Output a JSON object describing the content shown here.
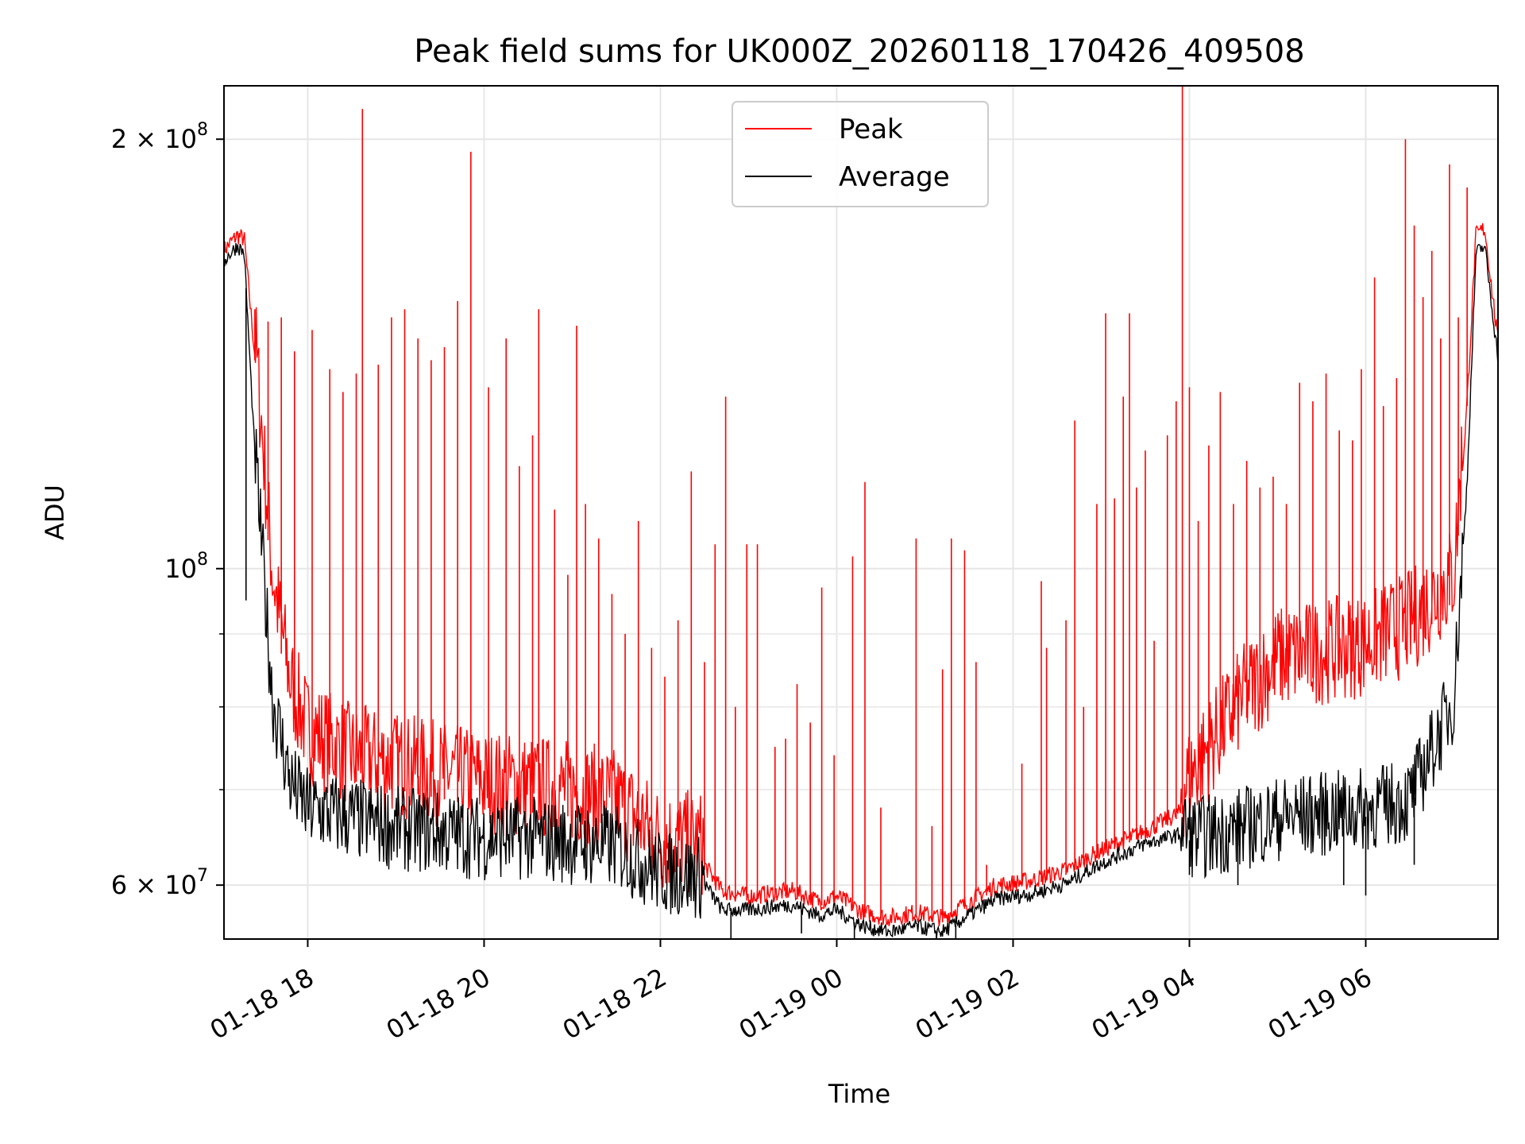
{
  "chart_data": {
    "type": "line",
    "title": "Peak field sums for UK000Z_20260118_170426_409508",
    "xlabel": "Time",
    "ylabel": "ADU",
    "yscale": "log",
    "ylim": [
      55000000,
      218000000
    ],
    "xlim_hours": [
      17.05,
      7.5
    ],
    "x_ticks": [
      {
        "label": "01-18 18",
        "hour": 18
      },
      {
        "label": "01-18 20",
        "hour": 20
      },
      {
        "label": "01-18 22",
        "hour": 22
      },
      {
        "label": "01-19 00",
        "hour": 24
      },
      {
        "label": "01-19 02",
        "hour": 26
      },
      {
        "label": "01-19 04",
        "hour": 28
      },
      {
        "label": "01-19 06",
        "hour": 30
      }
    ],
    "y_ticks_major": [
      {
        "value": 60000000,
        "mantissa": "6",
        "exponent": "7"
      },
      {
        "value": 100000000,
        "mantissa": "",
        "exponent": "8"
      },
      {
        "value": 200000000,
        "mantissa": "2",
        "exponent": "8"
      }
    ],
    "y_ticks_minor": [
      70000000,
      80000000,
      90000000
    ],
    "legend": {
      "location": "upper center",
      "entries": [
        {
          "name": "Peak",
          "color": "#ff0000"
        },
        {
          "name": "Average",
          "color": "#000000"
        }
      ]
    },
    "grid": true,
    "series": [
      {
        "name": "Peak",
        "color": "#ff0000",
        "baseline": {
          "hours": [
            17.05,
            17.2,
            17.28,
            17.4,
            17.6,
            17.8,
            18.0,
            18.5,
            19.0,
            19.5,
            20.0,
            20.5,
            21.0,
            21.5,
            22.0,
            22.5,
            22.7,
            23.0,
            23.5,
            23.8,
            24.0,
            24.3,
            24.6,
            24.9,
            25.2,
            25.5,
            25.8,
            26.2,
            26.6,
            27.0,
            27.5,
            27.9,
            28.1,
            28.6,
            29.0,
            29.5,
            30.0,
            30.5,
            31.0,
            31.15,
            31.25,
            31.35,
            31.5
          ],
          "values": [
            166000000,
            170000000,
            169000000,
            140000000,
            95000000,
            80000000,
            74000000,
            71000000,
            70000000,
            69000000,
            68000000,
            67500000,
            67000000,
            66000000,
            62000000,
            61500000,
            59000000,
            58500000,
            59000000,
            58000000,
            58500000,
            57000000,
            56500000,
            57000000,
            56500000,
            58000000,
            59500000,
            60000000,
            61000000,
            63000000,
            65000000,
            67000000,
            70000000,
            78000000,
            83000000,
            84000000,
            85000000,
            88000000,
            95000000,
            130000000,
            170000000,
            172000000,
            143000000
          ]
        },
        "spikes": [
          {
            "hour": 17.4,
            "value": 152000000
          },
          {
            "hour": 17.55,
            "value": 149000000
          },
          {
            "hour": 17.7,
            "value": 150000000
          },
          {
            "hour": 17.85,
            "value": 142000000
          },
          {
            "hour": 18.05,
            "value": 147000000
          },
          {
            "hour": 18.25,
            "value": 138000000
          },
          {
            "hour": 18.4,
            "value": 133000000
          },
          {
            "hour": 18.55,
            "value": 137000000
          },
          {
            "hour": 18.62,
            "value": 210000000
          },
          {
            "hour": 18.8,
            "value": 139000000
          },
          {
            "hour": 18.95,
            "value": 150000000
          },
          {
            "hour": 19.1,
            "value": 152000000
          },
          {
            "hour": 19.25,
            "value": 145000000
          },
          {
            "hour": 19.4,
            "value": 140000000
          },
          {
            "hour": 19.55,
            "value": 143000000
          },
          {
            "hour": 19.7,
            "value": 154000000
          },
          {
            "hour": 19.85,
            "value": 196000000
          },
          {
            "hour": 20.05,
            "value": 134000000
          },
          {
            "hour": 20.25,
            "value": 145000000
          },
          {
            "hour": 20.4,
            "value": 118000000
          },
          {
            "hour": 20.55,
            "value": 124000000
          },
          {
            "hour": 20.62,
            "value": 152000000
          },
          {
            "hour": 20.8,
            "value": 110000000
          },
          {
            "hour": 20.95,
            "value": 99000000
          },
          {
            "hour": 21.05,
            "value": 148000000
          },
          {
            "hour": 21.15,
            "value": 111000000
          },
          {
            "hour": 21.3,
            "value": 105000000
          },
          {
            "hour": 21.45,
            "value": 96000000
          },
          {
            "hour": 21.6,
            "value": 90000000
          },
          {
            "hour": 21.75,
            "value": 108000000
          },
          {
            "hour": 21.9,
            "value": 88000000
          },
          {
            "hour": 22.05,
            "value": 84000000
          },
          {
            "hour": 22.2,
            "value": 92000000
          },
          {
            "hour": 22.35,
            "value": 117000000
          },
          {
            "hour": 22.5,
            "value": 86000000
          },
          {
            "hour": 22.62,
            "value": 104000000
          },
          {
            "hour": 22.74,
            "value": 132000000
          },
          {
            "hour": 22.85,
            "value": 80000000
          },
          {
            "hour": 22.98,
            "value": 104000000
          },
          {
            "hour": 23.1,
            "value": 104000000
          },
          {
            "hour": 23.3,
            "value": 75000000
          },
          {
            "hour": 23.42,
            "value": 76000000
          },
          {
            "hour": 23.55,
            "value": 83000000
          },
          {
            "hour": 23.7,
            "value": 78000000
          },
          {
            "hour": 23.83,
            "value": 97000000
          },
          {
            "hour": 23.97,
            "value": 74000000
          },
          {
            "hour": 24.18,
            "value": 102000000
          },
          {
            "hour": 24.32,
            "value": 115000000
          },
          {
            "hour": 24.5,
            "value": 68000000
          },
          {
            "hour": 24.9,
            "value": 105000000
          },
          {
            "hour": 25.08,
            "value": 66000000
          },
          {
            "hour": 25.2,
            "value": 85000000
          },
          {
            "hour": 25.3,
            "value": 105000000
          },
          {
            "hour": 25.45,
            "value": 103000000
          },
          {
            "hour": 25.58,
            "value": 86000000
          },
          {
            "hour": 25.7,
            "value": 62000000
          },
          {
            "hour": 26.1,
            "value": 73000000
          },
          {
            "hour": 26.32,
            "value": 98000000
          },
          {
            "hour": 26.38,
            "value": 88000000
          },
          {
            "hour": 26.6,
            "value": 92000000
          },
          {
            "hour": 26.7,
            "value": 127000000
          },
          {
            "hour": 26.8,
            "value": 80000000
          },
          {
            "hour": 26.95,
            "value": 111000000
          },
          {
            "hour": 27.05,
            "value": 151000000
          },
          {
            "hour": 27.15,
            "value": 112000000
          },
          {
            "hour": 27.25,
            "value": 132000000
          },
          {
            "hour": 27.32,
            "value": 151000000
          },
          {
            "hour": 27.4,
            "value": 114000000
          },
          {
            "hour": 27.5,
            "value": 121000000
          },
          {
            "hour": 27.6,
            "value": 89000000
          },
          {
            "hour": 27.75,
            "value": 124000000
          },
          {
            "hour": 27.85,
            "value": 131000000
          },
          {
            "hour": 27.92,
            "value": 218000000
          },
          {
            "hour": 28.0,
            "value": 134000000
          },
          {
            "hour": 28.1,
            "value": 108000000
          },
          {
            "hour": 28.22,
            "value": 122000000
          },
          {
            "hour": 28.35,
            "value": 133000000
          },
          {
            "hour": 28.5,
            "value": 111000000
          },
          {
            "hour": 28.65,
            "value": 119000000
          },
          {
            "hour": 28.8,
            "value": 114000000
          },
          {
            "hour": 28.95,
            "value": 116000000
          },
          {
            "hour": 29.1,
            "value": 111000000
          },
          {
            "hour": 29.25,
            "value": 135000000
          },
          {
            "hour": 29.4,
            "value": 131000000
          },
          {
            "hour": 29.55,
            "value": 137000000
          },
          {
            "hour": 29.7,
            "value": 125000000
          },
          {
            "hour": 29.85,
            "value": 123000000
          },
          {
            "hour": 29.95,
            "value": 138000000
          },
          {
            "hour": 30.1,
            "value": 160000000
          },
          {
            "hour": 30.2,
            "value": 130000000
          },
          {
            "hour": 30.35,
            "value": 136000000
          },
          {
            "hour": 30.45,
            "value": 200000000
          },
          {
            "hour": 30.55,
            "value": 174000000
          },
          {
            "hour": 30.65,
            "value": 155000000
          },
          {
            "hour": 30.75,
            "value": 167000000
          },
          {
            "hour": 30.85,
            "value": 145000000
          },
          {
            "hour": 30.95,
            "value": 192000000
          },
          {
            "hour": 31.05,
            "value": 150000000
          },
          {
            "hour": 31.15,
            "value": 185000000
          }
        ]
      },
      {
        "name": "Average",
        "color": "#000000",
        "baseline": {
          "hours": [
            17.05,
            17.2,
            17.28,
            17.4,
            17.6,
            17.8,
            18.0,
            18.5,
            19.0,
            19.5,
            20.0,
            20.5,
            21.0,
            21.5,
            22.0,
            22.5,
            22.7,
            23.0,
            23.5,
            23.8,
            24.0,
            24.3,
            24.6,
            24.9,
            25.2,
            25.5,
            25.8,
            26.2,
            26.6,
            27.0,
            27.5,
            27.9,
            28.1,
            28.6,
            29.0,
            29.5,
            30.0,
            30.5,
            31.0,
            31.15,
            31.25,
            31.35,
            31.5
          ],
          "values": [
            164000000,
            168000000,
            166000000,
            120000000,
            80000000,
            70000000,
            67000000,
            66000000,
            65000000,
            64500000,
            64000000,
            64000000,
            63500000,
            63000000,
            60500000,
            60000000,
            57500000,
            57500000,
            58000000,
            57000000,
            57500000,
            56000000,
            55500000,
            56000000,
            55500000,
            57000000,
            58500000,
            59000000,
            60000000,
            62000000,
            64000000,
            65000000,
            64000000,
            65000000,
            66000000,
            66500000,
            67000000,
            68000000,
            80000000,
            115000000,
            166000000,
            168000000,
            140000000
          ]
        },
        "noise_bottoms": [
          {
            "hour": 17.3,
            "value": 95000000
          },
          {
            "hour": 22.8,
            "value": 55000000
          },
          {
            "hour": 23.6,
            "value": 55500000
          },
          {
            "hour": 24.2,
            "value": 54500000
          },
          {
            "hour": 25.13,
            "value": 53500000
          },
          {
            "hour": 25.35,
            "value": 54000000
          },
          {
            "hour": 28.0,
            "value": 61000000
          },
          {
            "hour": 28.55,
            "value": 60000000
          },
          {
            "hour": 29.75,
            "value": 60000000
          },
          {
            "hour": 30.0,
            "value": 59000000
          },
          {
            "hour": 30.55,
            "value": 62000000
          }
        ]
      }
    ]
  }
}
